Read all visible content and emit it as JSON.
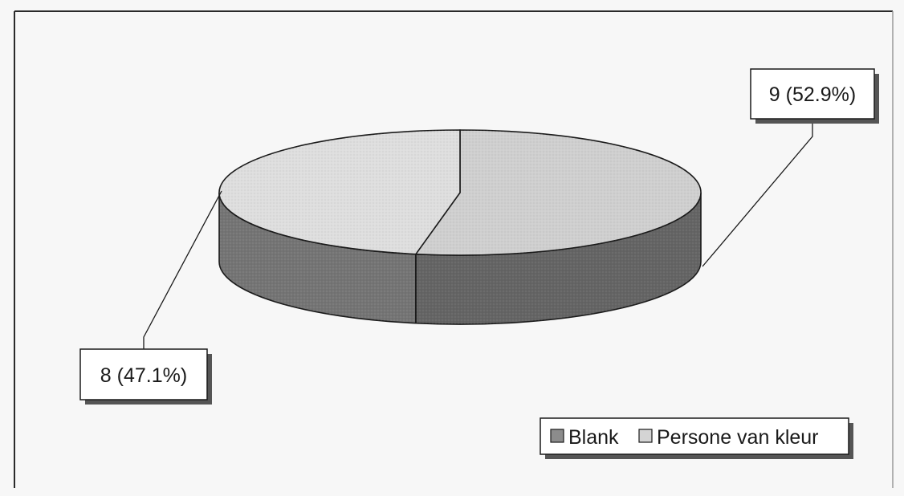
{
  "chart_data": {
    "type": "pie",
    "style": "3d",
    "legend_position": "bottom-right",
    "series": [
      {
        "name": "Blank",
        "value": 8,
        "label": "8 (47.1%)",
        "color": "#8c8c8c"
      },
      {
        "name": "Persone van kleur",
        "value": 9,
        "label": "9 (52.9%)",
        "color": "#d4d4d4"
      }
    ]
  }
}
